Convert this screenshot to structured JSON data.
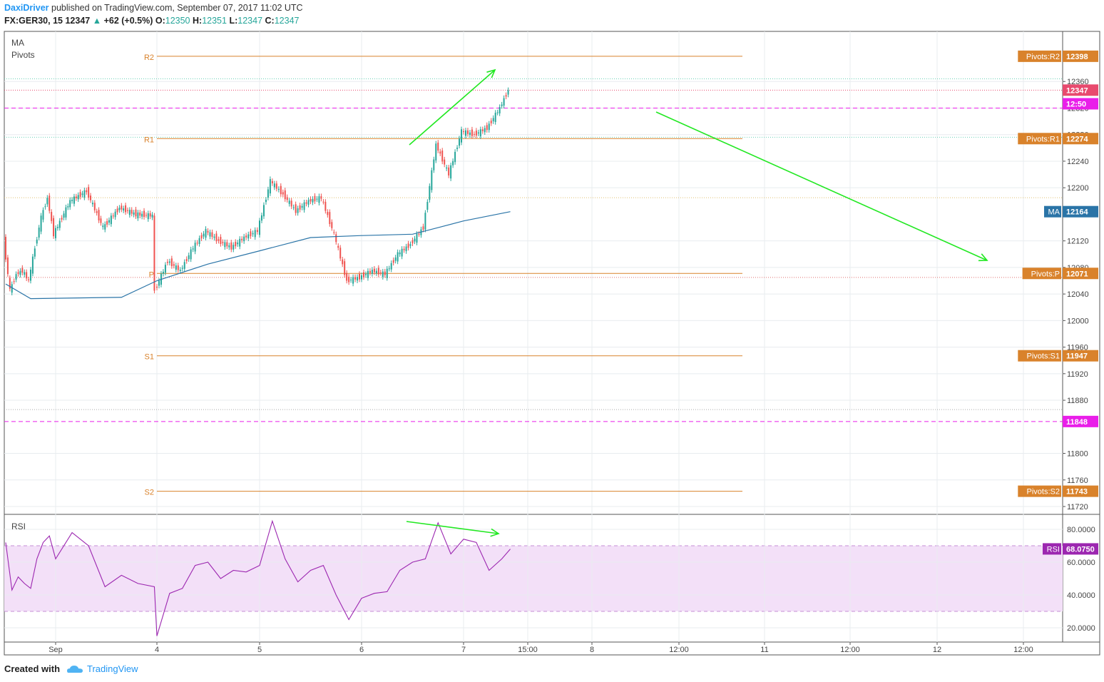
{
  "header": {
    "author": "DaxiDriver",
    "published": "published on TradingView.com, September 07, 2017 11:02 UTC",
    "symbol": "FX:GER30, 15",
    "last": "12347",
    "change": "+62 (+0.5%)",
    "o_label": "O:",
    "o": "12350",
    "h_label": "H:",
    "h": "12351",
    "l_label": "L:",
    "l": "12347",
    "c_label": "C:",
    "c": "12347"
  },
  "indicators": {
    "ma": "MA",
    "pivots": "Pivots",
    "rsi": "RSI"
  },
  "footer": {
    "created_with": "Created with",
    "brand": "TradingView"
  },
  "colors": {
    "up": "#26a69a",
    "down": "#ef5350",
    "pivot": "#d9822b",
    "ma": "#2a74a7",
    "rsi": "#9c27b0",
    "rsi_band": "#f3e0f8",
    "dash_magenta": "#e91ee9",
    "arrow": "#22e822"
  },
  "chart_data": [
    {
      "type": "candlestick",
      "symbol": "FX:GER30",
      "interval": "15",
      "ylim": [
        11700,
        12420
      ],
      "y_ticks": [
        12360,
        12320,
        12280,
        12240,
        12200,
        12120,
        12080,
        12040,
        12000,
        11960,
        11920,
        11880,
        11800,
        11760,
        11720
      ],
      "x_ticks": [
        "Sep",
        "4",
        "5",
        "6",
        "7",
        "15:00",
        "8",
        "12:00",
        "11",
        "12:00",
        "12",
        "12:00"
      ],
      "pivot_levels": [
        {
          "name": "R2",
          "value": 12398,
          "label": "Pivots:R2"
        },
        {
          "name": "R1",
          "value": 12274,
          "label": "Pivots:R1"
        },
        {
          "name": "P",
          "value": 12071,
          "label": "Pivots:P"
        },
        {
          "name": "S1",
          "value": 11947,
          "label": "Pivots:S1"
        },
        {
          "name": "S2",
          "value": 11743,
          "label": "Pivots:S2"
        }
      ],
      "last_price": {
        "value": 12347,
        "label": "12347"
      },
      "countdown": {
        "value": 12320,
        "label": "12:50"
      },
      "ma": {
        "name": "MA",
        "value": 12164
      },
      "hline_low": {
        "value": 11848,
        "label": "11848"
      },
      "price_path": [
        {
          "x": "2017-09-01 00:00",
          "y": 12120
        },
        {
          "x": "2017-09-01 03:00",
          "y": 12045
        },
        {
          "x": "2017-09-01 06:00",
          "y": 12070
        },
        {
          "x": "2017-09-01 09:00",
          "y": 12075
        },
        {
          "x": "2017-09-01 12:00",
          "y": 12060
        },
        {
          "x": "2017-09-01 15:00",
          "y": 12110
        },
        {
          "x": "2017-09-01 18:00",
          "y": 12155
        },
        {
          "x": "2017-09-01 21:00",
          "y": 12185
        },
        {
          "x": "2017-09-02 00:00",
          "y": 12130
        },
        {
          "x": "2017-09-02 03:00",
          "y": 12180
        },
        {
          "x": "2017-09-02 06:00",
          "y": 12195
        },
        {
          "x": "2017-09-02 09:00",
          "y": 12140
        },
        {
          "x": "2017-09-02 12:00",
          "y": 12170
        },
        {
          "x": "2017-09-02 15:00",
          "y": 12160
        },
        {
          "x": "2017-09-02 18:00",
          "y": 12158
        },
        {
          "x": "2017-09-04 00:00",
          "y": 12045
        },
        {
          "x": "2017-09-04 03:00",
          "y": 12090
        },
        {
          "x": "2017-09-04 06:00",
          "y": 12075
        },
        {
          "x": "2017-09-04 09:00",
          "y": 12110
        },
        {
          "x": "2017-09-04 12:00",
          "y": 12135
        },
        {
          "x": "2017-09-04 15:00",
          "y": 12120
        },
        {
          "x": "2017-09-04 18:00",
          "y": 12110
        },
        {
          "x": "2017-09-04 21:00",
          "y": 12125
        },
        {
          "x": "2017-09-05 00:00",
          "y": 12135
        },
        {
          "x": "2017-09-05 03:00",
          "y": 12210
        },
        {
          "x": "2017-09-05 06:00",
          "y": 12190
        },
        {
          "x": "2017-09-05 09:00",
          "y": 12165
        },
        {
          "x": "2017-09-05 12:00",
          "y": 12180
        },
        {
          "x": "2017-09-05 15:00",
          "y": 12185
        },
        {
          "x": "2017-09-05 18:00",
          "y": 12130
        },
        {
          "x": "2017-09-05 21:00",
          "y": 12060
        },
        {
          "x": "2017-09-06 00:00",
          "y": 12065
        },
        {
          "x": "2017-09-06 03:00",
          "y": 12075
        },
        {
          "x": "2017-09-06 06:00",
          "y": 12070
        },
        {
          "x": "2017-09-06 09:00",
          "y": 12100
        },
        {
          "x": "2017-09-06 12:00",
          "y": 12115
        },
        {
          "x": "2017-09-06 15:00",
          "y": 12140
        },
        {
          "x": "2017-09-06 18:00",
          "y": 12265
        },
        {
          "x": "2017-09-06 21:00",
          "y": 12220
        },
        {
          "x": "2017-09-07 00:00",
          "y": 12285
        },
        {
          "x": "2017-09-07 03:00",
          "y": 12280
        },
        {
          "x": "2017-09-07 06:00",
          "y": 12290
        },
        {
          "x": "2017-09-07 09:00",
          "y": 12320
        },
        {
          "x": "2017-09-07 11:00",
          "y": 12347
        }
      ],
      "ma_path": [
        {
          "x": "2017-09-01 00:00",
          "y": 12055
        },
        {
          "x": "2017-09-01 12:00",
          "y": 12033
        },
        {
          "x": "2017-09-02 12:00",
          "y": 12035
        },
        {
          "x": "2017-09-04 00:00",
          "y": 12060
        },
        {
          "x": "2017-09-04 12:00",
          "y": 12085
        },
        {
          "x": "2017-09-05 00:00",
          "y": 12105
        },
        {
          "x": "2017-09-05 12:00",
          "y": 12125
        },
        {
          "x": "2017-09-06 00:00",
          "y": 12128
        },
        {
          "x": "2017-09-06 12:00",
          "y": 12130
        },
        {
          "x": "2017-09-06 18:00",
          "y": 12140
        },
        {
          "x": "2017-09-07 00:00",
          "y": 12150
        },
        {
          "x": "2017-09-07 11:00",
          "y": 12164
        }
      ]
    },
    {
      "type": "line",
      "name": "RSI",
      "ylim": [
        10,
        90
      ],
      "y_ticks": [
        80.0,
        60.0,
        40.0,
        20.0
      ],
      "y_tick_labels": [
        "80.0000",
        "60.0000",
        "40.0000",
        "20.0000"
      ],
      "band": [
        30,
        70
      ],
      "last": {
        "value": 68.075,
        "label": "68.0750"
      },
      "series": [
        {
          "x": "2017-09-01 00:00",
          "y": 72
        },
        {
          "x": "2017-09-01 03:00",
          "y": 43
        },
        {
          "x": "2017-09-01 06:00",
          "y": 51
        },
        {
          "x": "2017-09-01 09:00",
          "y": 47
        },
        {
          "x": "2017-09-01 12:00",
          "y": 44
        },
        {
          "x": "2017-09-01 15:00",
          "y": 62
        },
        {
          "x": "2017-09-01 18:00",
          "y": 72
        },
        {
          "x": "2017-09-01 21:00",
          "y": 76
        },
        {
          "x": "2017-09-02 00:00",
          "y": 62
        },
        {
          "x": "2017-09-02 03:00",
          "y": 78
        },
        {
          "x": "2017-09-02 06:00",
          "y": 70
        },
        {
          "x": "2017-09-02 09:00",
          "y": 45
        },
        {
          "x": "2017-09-02 12:00",
          "y": 52
        },
        {
          "x": "2017-09-02 15:00",
          "y": 47
        },
        {
          "x": "2017-09-02 18:00",
          "y": 45
        },
        {
          "x": "2017-09-04 00:00",
          "y": 15
        },
        {
          "x": "2017-09-04 03:00",
          "y": 41
        },
        {
          "x": "2017-09-04 06:00",
          "y": 44
        },
        {
          "x": "2017-09-04 09:00",
          "y": 58
        },
        {
          "x": "2017-09-04 12:00",
          "y": 60
        },
        {
          "x": "2017-09-04 15:00",
          "y": 50
        },
        {
          "x": "2017-09-04 18:00",
          "y": 55
        },
        {
          "x": "2017-09-04 21:00",
          "y": 54
        },
        {
          "x": "2017-09-05 00:00",
          "y": 58
        },
        {
          "x": "2017-09-05 03:00",
          "y": 85
        },
        {
          "x": "2017-09-05 06:00",
          "y": 62
        },
        {
          "x": "2017-09-05 09:00",
          "y": 48
        },
        {
          "x": "2017-09-05 12:00",
          "y": 55
        },
        {
          "x": "2017-09-05 15:00",
          "y": 58
        },
        {
          "x": "2017-09-05 18:00",
          "y": 40
        },
        {
          "x": "2017-09-05 21:00",
          "y": 25
        },
        {
          "x": "2017-09-06 00:00",
          "y": 38
        },
        {
          "x": "2017-09-06 03:00",
          "y": 41
        },
        {
          "x": "2017-09-06 06:00",
          "y": 42
        },
        {
          "x": "2017-09-06 09:00",
          "y": 55
        },
        {
          "x": "2017-09-06 12:00",
          "y": 60
        },
        {
          "x": "2017-09-06 15:00",
          "y": 62
        },
        {
          "x": "2017-09-06 18:00",
          "y": 84
        },
        {
          "x": "2017-09-06 21:00",
          "y": 65
        },
        {
          "x": "2017-09-07 00:00",
          "y": 74
        },
        {
          "x": "2017-09-07 03:00",
          "y": 72
        },
        {
          "x": "2017-09-07 06:00",
          "y": 55
        },
        {
          "x": "2017-09-07 09:00",
          "y": 62
        },
        {
          "x": "2017-09-07 11:00",
          "y": 68
        }
      ]
    }
  ]
}
